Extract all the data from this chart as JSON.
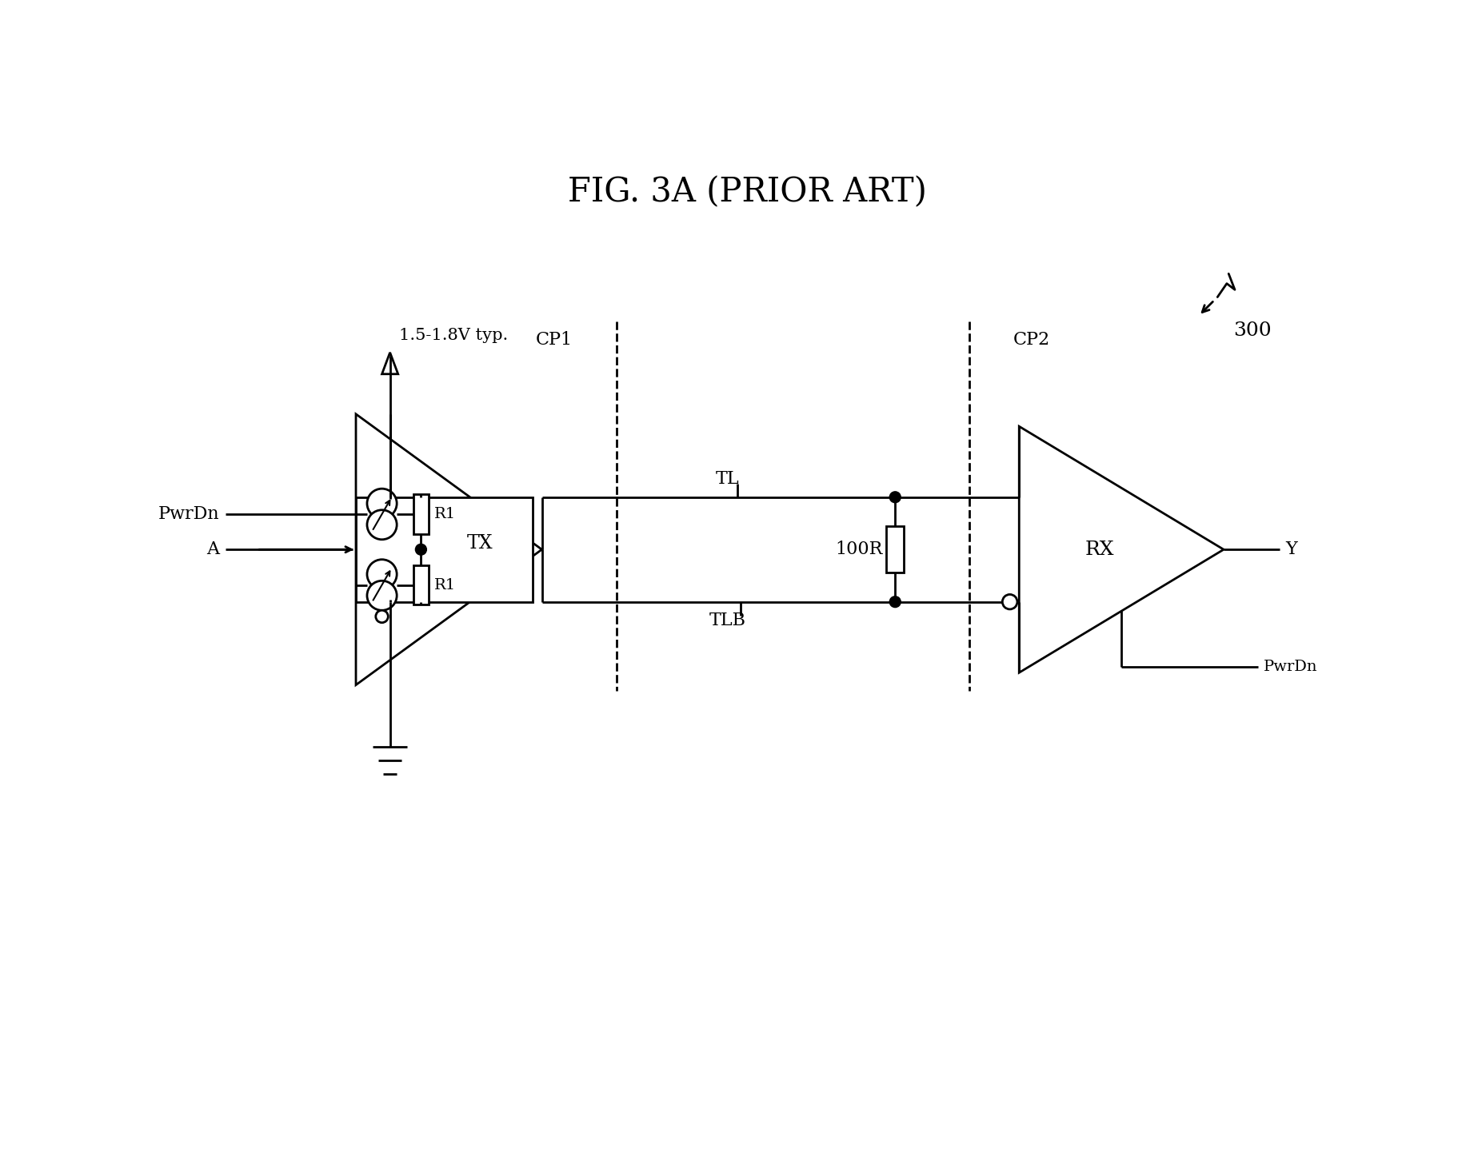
{
  "title": "FIG. 3A (PRIOR ART)",
  "fig_number": "300",
  "bg_color": "#ffffff",
  "cp1_label": "CP1",
  "cp2_label": "CP2",
  "tl_label": "TL",
  "tlb_label": "TLB",
  "tx_label": "TX",
  "rx_label": "RX",
  "r1_label": "R1",
  "r100_label": "100R",
  "pwrdn_label": "PwrDn",
  "a_label": "A",
  "y_label": "Y",
  "vcc_label": "1.5-1.8V typ.",
  "title_fontsize": 30,
  "label_fontsize": 16,
  "small_fontsize": 14
}
